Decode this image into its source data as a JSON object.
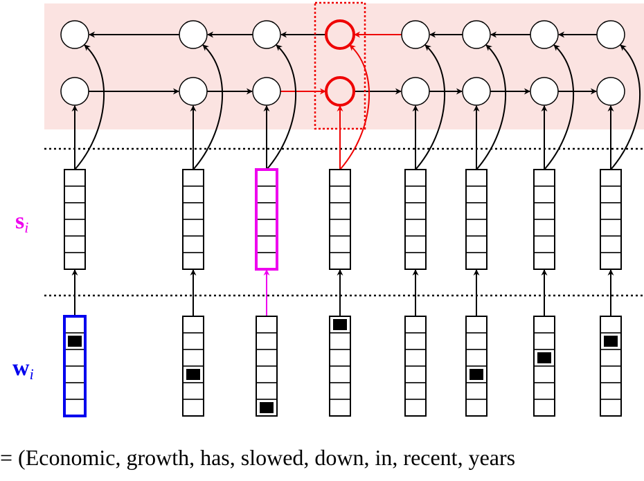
{
  "labels": {
    "s": "s",
    "s_sub": "i",
    "w": "w",
    "w_sub": "i",
    "sentence": "= (Economic, growth, has, slowed, down, in, recent, years"
  },
  "columns": [
    {
      "word": "Economic",
      "onehot_index": 1
    },
    {
      "word": "growth",
      "onehot_index": 3
    },
    {
      "word": "has",
      "onehot_index": 5
    },
    {
      "word": "slowed",
      "onehot_index": 0
    },
    {
      "word": "down",
      "onehot_index": null
    },
    {
      "word": "in",
      "onehot_index": 3
    },
    {
      "word": "recent",
      "onehot_index": 2
    },
    {
      "word": "years",
      "onehot_index": 1
    }
  ],
  "highlights": {
    "selected_word_column": 0,
    "selected_embedding_column": 2,
    "selected_rnn_column": 3
  },
  "colors": {
    "rnn_band": "#fbe3e1",
    "word_highlight": "#0000ee",
    "embedding_highlight": "#ee00ee",
    "rnn_highlight": "#ee0000",
    "default_stroke": "#000000"
  }
}
